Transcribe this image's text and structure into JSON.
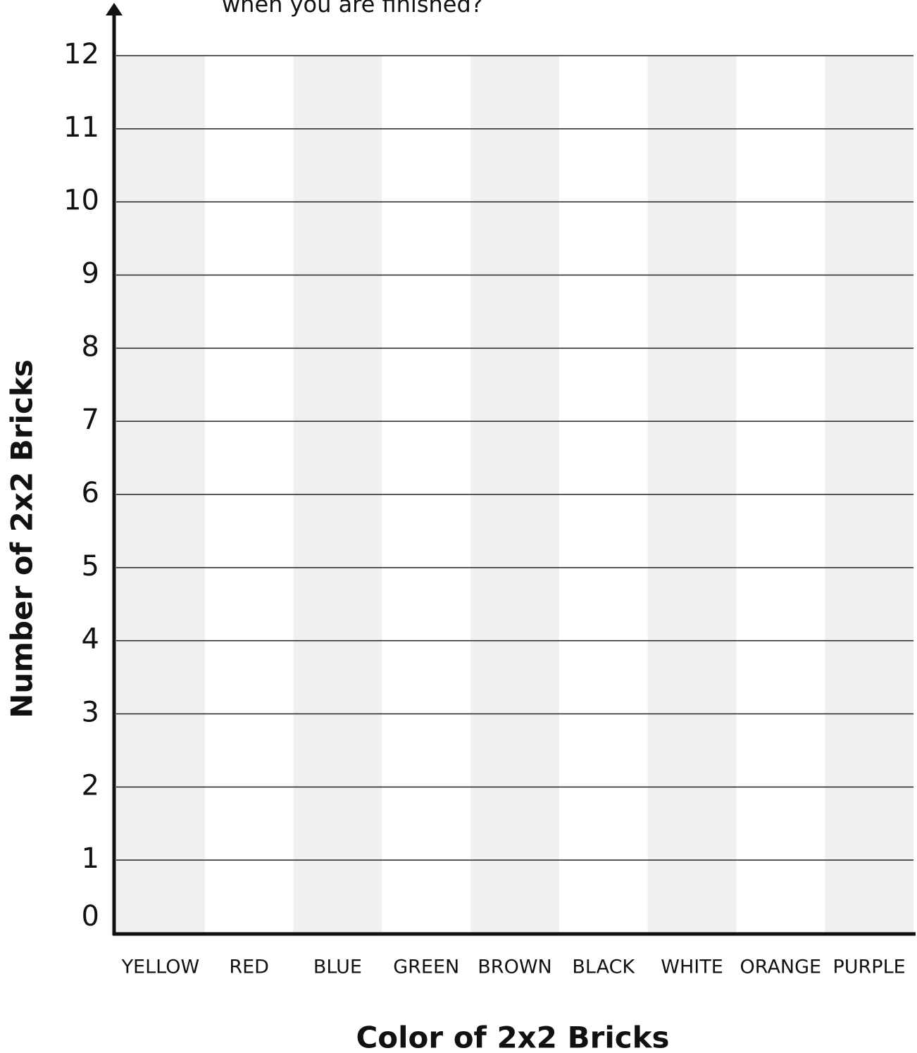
{
  "chart_data": {
    "type": "bar",
    "title": "when you are finished?",
    "x_label": "Color of 2x2 Bricks",
    "y_label": "Number of 2x2 Bricks",
    "categories": [
      "YELLOW",
      "RED",
      "BLUE",
      "GREEN",
      "BROWN",
      "BLACK",
      "WHITE",
      "ORANGE",
      "PURPLE"
    ],
    "ylim": [
      0,
      12
    ],
    "yticks": [
      0,
      1,
      2,
      3,
      4,
      5,
      6,
      7,
      8,
      9,
      10,
      11,
      12
    ],
    "grid": true,
    "stripe_color": "#f0f0f0"
  }
}
